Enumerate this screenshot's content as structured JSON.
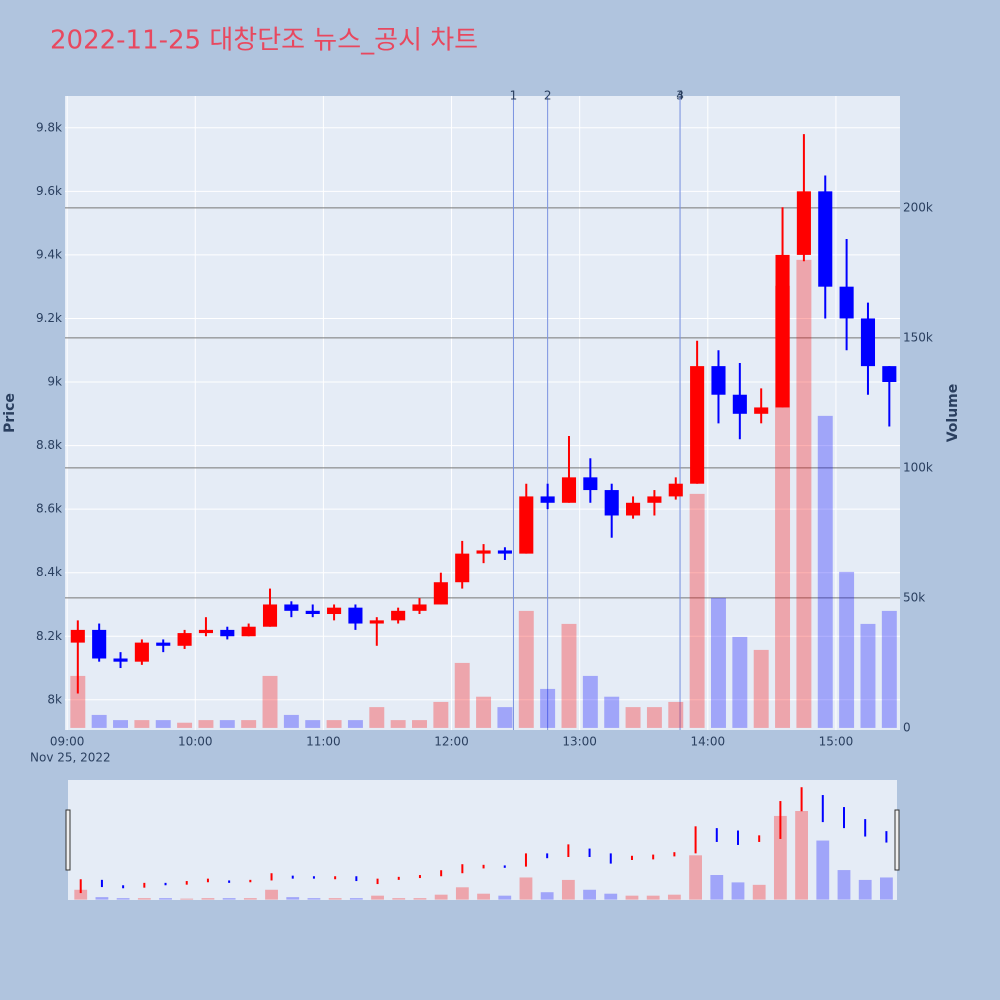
{
  "chart_data": {
    "type": "candlestick",
    "title": "2022-11-25 대창단조 뉴스_공시 차트",
    "y_label": "Price",
    "y2_label": "Volume",
    "date_label": "Nov 25, 2022",
    "x": [
      "09:00",
      "09:10",
      "09:20",
      "09:30",
      "09:40",
      "09:50",
      "10:00",
      "10:10",
      "10:20",
      "10:30",
      "10:40",
      "10:50",
      "11:00",
      "11:10",
      "11:20",
      "11:30",
      "11:40",
      "11:50",
      "12:00",
      "12:10",
      "12:20",
      "12:30",
      "12:40",
      "12:50",
      "13:00",
      "13:10",
      "13:20",
      "13:30",
      "13:40",
      "13:50",
      "14:00",
      "14:10",
      "14:20",
      "14:30",
      "14:40",
      "14:50",
      "15:00",
      "15:10",
      "15:20"
    ],
    "open": [
      8180,
      8220,
      8130,
      8120,
      8180,
      8170,
      8210,
      8220,
      8200,
      8230,
      8300,
      8280,
      8270,
      8290,
      8240,
      8250,
      8280,
      8300,
      8370,
      8460,
      8470,
      8460,
      8640,
      8620,
      8700,
      8660,
      8580,
      8620,
      8640,
      8680,
      9050,
      8960,
      8900,
      8920,
      9400,
      9600,
      9300,
      9200,
      9050
    ],
    "high": [
      8250,
      8240,
      8150,
      8190,
      8190,
      8220,
      8260,
      8230,
      8240,
      8350,
      8310,
      8300,
      8300,
      8300,
      8260,
      8290,
      8320,
      8400,
      8500,
      8490,
      8480,
      8680,
      8680,
      8830,
      8760,
      8680,
      8640,
      8660,
      8700,
      9130,
      9100,
      9060,
      8980,
      9550,
      9780,
      9650,
      9450,
      9250,
      9050
    ],
    "low": [
      8020,
      8120,
      8100,
      8110,
      8150,
      8160,
      8200,
      8190,
      8200,
      8230,
      8260,
      8260,
      8250,
      8220,
      8170,
      8240,
      8270,
      8300,
      8350,
      8430,
      8440,
      8460,
      8600,
      8620,
      8620,
      8510,
      8570,
      8580,
      8630,
      8680,
      8870,
      8820,
      8870,
      8920,
      9380,
      9200,
      9100,
      8960,
      8860
    ],
    "close": [
      8220,
      8130,
      8120,
      8180,
      8170,
      8210,
      8220,
      8200,
      8230,
      8300,
      8280,
      8270,
      8290,
      8240,
      8250,
      8280,
      8300,
      8370,
      8460,
      8470,
      8460,
      8640,
      8620,
      8700,
      8660,
      8580,
      8620,
      8640,
      8680,
      9050,
      8960,
      8900,
      8920,
      9400,
      9600,
      9300,
      9200,
      9050,
      9000
    ],
    "volume": [
      20000,
      5000,
      3000,
      3000,
      3000,
      2000,
      3000,
      3000,
      3000,
      20000,
      5000,
      3000,
      3000,
      3000,
      8000,
      3000,
      3000,
      10000,
      25000,
      12000,
      8000,
      45000,
      15000,
      40000,
      20000,
      12000,
      8000,
      8000,
      10000,
      90000,
      50000,
      35000,
      30000,
      170000,
      180000,
      120000,
      60000,
      40000,
      45000
    ],
    "up_color": "#ff0000",
    "down_color": "#0000ff",
    "xlim": [
      "08:59",
      "15:30"
    ],
    "xticks": [
      "09:00",
      "10:00",
      "11:00",
      "12:00",
      "13:00",
      "14:00",
      "15:00"
    ],
    "ylim": [
      7905,
      9900
    ],
    "yticks": [
      {
        "value": 8000,
        "label": "8k"
      },
      {
        "value": 8200,
        "label": "8.2k"
      },
      {
        "value": 8400,
        "label": "8.4k"
      },
      {
        "value": 8600,
        "label": "8.6k"
      },
      {
        "value": 8800,
        "label": "8.8k"
      },
      {
        "value": 9000,
        "label": "9k"
      },
      {
        "value": 9200,
        "label": "9.2k"
      },
      {
        "value": 9400,
        "label": "9.4k"
      },
      {
        "value": 9600,
        "label": "9.6k"
      },
      {
        "value": 9800,
        "label": "9.8k"
      }
    ],
    "y2lim": [
      -800,
      243000
    ],
    "y2ticks": [
      0,
      {
        "value": 50000,
        "label": "50k"
      },
      {
        "value": 100000,
        "label": "100k"
      },
      {
        "value": 150000,
        "label": "150k"
      },
      {
        "value": 200000,
        "label": "200k"
      }
    ],
    "markers": [
      {
        "x": "12:29",
        "label": "1"
      },
      {
        "x": "12:45",
        "label": "2"
      },
      {
        "x": "13:47",
        "label": "3"
      },
      {
        "x": "13:47",
        "label": "4"
      }
    ]
  }
}
